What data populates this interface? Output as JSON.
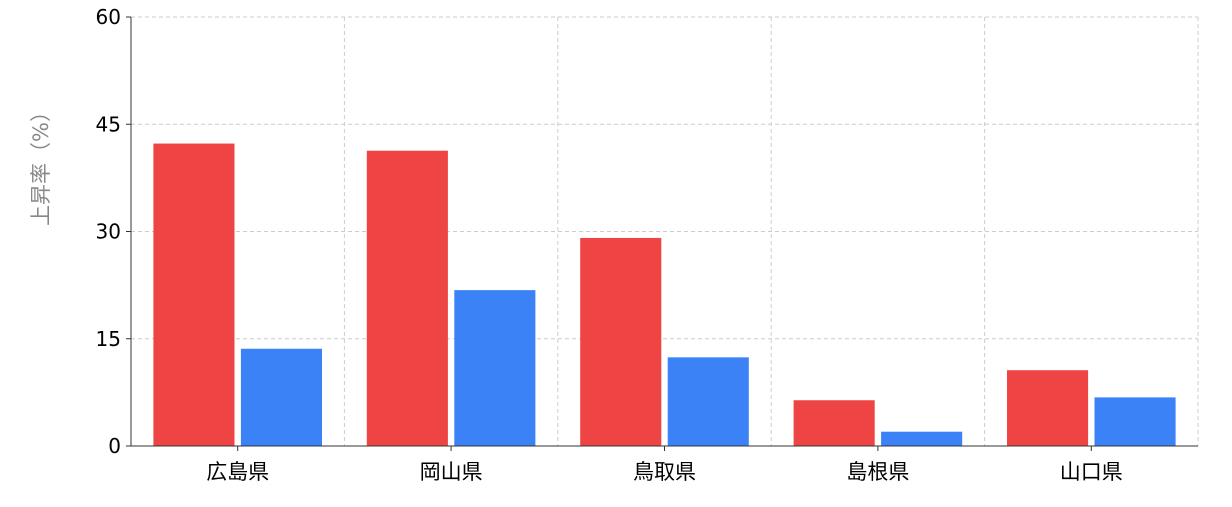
{
  "chart_data": {
    "type": "bar",
    "categories": [
      "広島県",
      "岡山県",
      "鳥取県",
      "島根県",
      "山口県"
    ],
    "series": [
      {
        "values": [
          42.3,
          41.3,
          29.1,
          6.4,
          10.6
        ],
        "color": "#ef4444"
      },
      {
        "values": [
          13.6,
          21.8,
          12.4,
          2.0,
          6.8
        ],
        "color": "#3b82f6"
      }
    ],
    "ylabel": "上昇率（%）",
    "xlabel": "",
    "ylim": [
      0,
      60
    ],
    "yticks": [
      0,
      15,
      30,
      45,
      60
    ],
    "grid": true,
    "legend": "none"
  }
}
